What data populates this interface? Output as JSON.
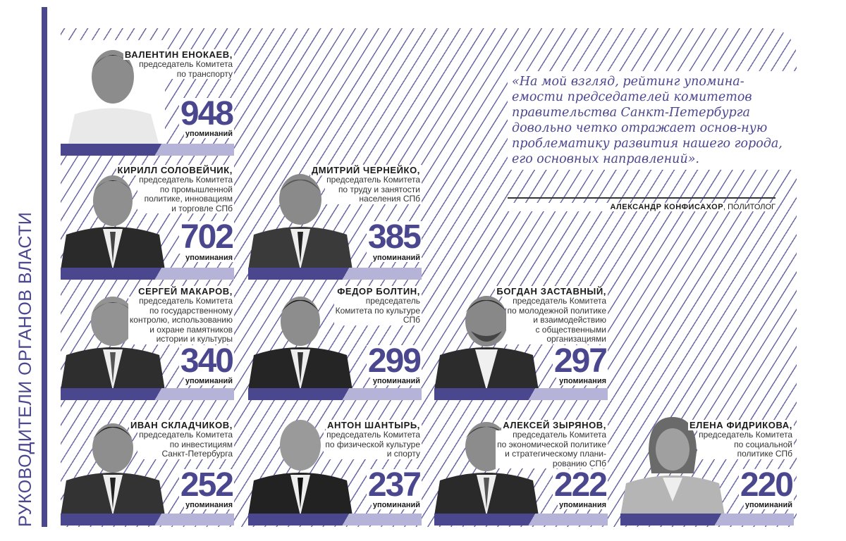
{
  "side_title": "РУКОВОДИТЕЛИ ОРГАНОВ ВЛАСТИ",
  "mentions_label": "упоминаний",
  "people": [
    {
      "name": "ВАЛЕНТИН ЕНОКАЕВ,",
      "role": "председатель Комитета\nпо транспорту",
      "count": "948",
      "label": "упоминаний"
    },
    {
      "name": "КИРИЛЛ СОЛОВЕЙЧИК,",
      "role": "председатель Комитета\nпо промышленной\nполитике, инновациям\nи торговле СПб",
      "count": "702",
      "label": "упоминания"
    },
    {
      "name": "ДМИТРИЙ ЧЕРНЕЙКО,",
      "role": "председатель Комитета\nпо труду и занятости\nнаселения СПб",
      "count": "385",
      "label": "упоминаний"
    },
    {
      "name": "СЕРГЕЙ МАКАРОВ,",
      "role": "председатель Комитета\nпо государственному\nконтролю, использованию\nи охране памятников\nистории и культуры",
      "count": "340",
      "label": "упоминаний"
    },
    {
      "name": "ФЕДОР БОЛТИН,",
      "role": "председатель\nКомитета по культуре\nСПб",
      "count": "299",
      "label": "упоминаний"
    },
    {
      "name": "БОГДАН ЗАСТАВНЫЙ,",
      "role": "председатель Комитета\nпо молодежной политике\nи взаимодействию\nс общественными\nорганизациями",
      "count": "297",
      "label": "упоминания"
    },
    {
      "name": "ИВАН СКЛАДЧИКОВ,",
      "role": "председатель Комитета\nпо инвестициям\nСанкт-Петербурга",
      "count": "252",
      "label": "упоминания"
    },
    {
      "name": "АНТОН ШАНТЫРЬ,",
      "role": "председатель Комитета\nпо физической культуре\nи спорту",
      "count": "237",
      "label": "упоминаний"
    },
    {
      "name": "АЛЕКСЕЙ ЗЫРЯНОВ,",
      "role": "председатель Комитета\nпо экономической политике\nи стратегическому плани-\nрованию СПб",
      "count": "222",
      "label": "упоминания"
    },
    {
      "name": "ЕЛЕНА ФИДРИКОВА,",
      "role": "председатель Комитета\nпо социальной\nполитике СПб",
      "count": "220",
      "label": "упоминаний"
    }
  ],
  "quote": {
    "text": "«На мой взгляд, рейтинг упомина-емости председателей комитетов правительства Санкт-Петербурга довольно четко отражает основ-ную проблематику развития нашего города, его основных направлений».",
    "author": "АЛЕКСАНДР КОНФИСАХОР",
    "author_role": ", ПОЛИТОЛОГ"
  },
  "colors": {
    "accent": "#4b478f",
    "accent_light": "#b6b3d8"
  }
}
